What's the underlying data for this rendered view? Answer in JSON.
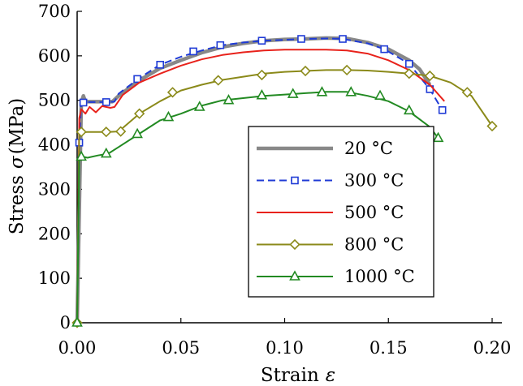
{
  "chart_data": {
    "type": "line",
    "xlabel": "Strain",
    "xlabel_symbol": "ε",
    "ylabel": "Stress",
    "ylabel_symbol": "σ",
    "ylabel_unit": "(MPa)",
    "xlim": [
      0,
      0.2
    ],
    "ylim": [
      0,
      700
    ],
    "x_ticks": [
      "0.00",
      "0.05",
      "0.10",
      "0.15",
      "0.20"
    ],
    "y_ticks": [
      "0",
      "100",
      "200",
      "300",
      "400",
      "500",
      "600",
      "700"
    ],
    "grid": false,
    "legend_position": "lower-middle",
    "series": [
      {
        "name": "20 °C",
        "color": "#888888",
        "line": "solid",
        "marker": "none",
        "points": [
          [
            0,
            0
          ],
          [
            0.002,
            495
          ],
          [
            0.003,
            510
          ],
          [
            0.004,
            497
          ],
          [
            0.017,
            497
          ],
          [
            0.02,
            510
          ],
          [
            0.03,
            545
          ],
          [
            0.04,
            572
          ],
          [
            0.05,
            590
          ],
          [
            0.06,
            607
          ],
          [
            0.07,
            620
          ],
          [
            0.08,
            628
          ],
          [
            0.09,
            634
          ],
          [
            0.1,
            637
          ],
          [
            0.11,
            638
          ],
          [
            0.12,
            640
          ],
          [
            0.13,
            639
          ],
          [
            0.14,
            630
          ],
          [
            0.15,
            615
          ],
          [
            0.16,
            590
          ],
          [
            0.165,
            570
          ],
          [
            0.17,
            535
          ]
        ],
        "markers": []
      },
      {
        "name": "300 °C",
        "color": "#1f3bd6",
        "line": "dashed",
        "marker": "square",
        "points": [
          [
            0,
            0
          ],
          [
            0.001,
            405
          ],
          [
            0.002,
            495
          ],
          [
            0.005,
            496
          ],
          [
            0.014,
            496
          ],
          [
            0.018,
            497
          ],
          [
            0.02,
            515
          ],
          [
            0.03,
            550
          ],
          [
            0.04,
            580
          ],
          [
            0.05,
            598
          ],
          [
            0.06,
            612
          ],
          [
            0.07,
            624
          ],
          [
            0.08,
            630
          ],
          [
            0.09,
            634
          ],
          [
            0.1,
            636
          ],
          [
            0.11,
            638
          ],
          [
            0.12,
            639
          ],
          [
            0.128,
            638
          ],
          [
            0.14,
            628
          ],
          [
            0.148,
            615
          ],
          [
            0.16,
            582
          ],
          [
            0.17,
            525
          ],
          [
            0.176,
            478
          ]
        ],
        "markers": [
          [
            0.001,
            405
          ],
          [
            0.003,
            495
          ],
          [
            0.014,
            496
          ],
          [
            0.029,
            548
          ],
          [
            0.04,
            580
          ],
          [
            0.056,
            610
          ],
          [
            0.069,
            624
          ],
          [
            0.089,
            634
          ],
          [
            0.108,
            638
          ],
          [
            0.128,
            638
          ],
          [
            0.148,
            615
          ],
          [
            0.16,
            582
          ],
          [
            0.17,
            525
          ],
          [
            0.176,
            478
          ]
        ]
      },
      {
        "name": "500 °C",
        "color": "#e8221b",
        "line": "solid",
        "marker": "none",
        "points": [
          [
            0,
            0
          ],
          [
            0.001,
            460
          ],
          [
            0.002,
            480
          ],
          [
            0.004,
            470
          ],
          [
            0.006,
            485
          ],
          [
            0.009,
            473
          ],
          [
            0.012,
            487
          ],
          [
            0.016,
            483
          ],
          [
            0.018,
            485
          ],
          [
            0.022,
            512
          ],
          [
            0.03,
            540
          ],
          [
            0.04,
            560
          ],
          [
            0.05,
            578
          ],
          [
            0.06,
            592
          ],
          [
            0.07,
            602
          ],
          [
            0.08,
            608
          ],
          [
            0.09,
            612
          ],
          [
            0.1,
            614
          ],
          [
            0.11,
            614
          ],
          [
            0.12,
            614
          ],
          [
            0.13,
            612
          ],
          [
            0.14,
            605
          ],
          [
            0.15,
            590
          ],
          [
            0.16,
            568
          ],
          [
            0.17,
            535
          ],
          [
            0.177,
            498
          ]
        ],
        "markers": []
      },
      {
        "name": "800 °C",
        "color": "#8b8a1a",
        "line": "solid",
        "marker": "diamond",
        "points": [
          [
            0,
            0
          ],
          [
            0.001,
            428
          ],
          [
            0.005,
            429
          ],
          [
            0.015,
            429
          ],
          [
            0.02,
            430
          ],
          [
            0.03,
            470
          ],
          [
            0.04,
            498
          ],
          [
            0.05,
            522
          ],
          [
            0.06,
            535
          ],
          [
            0.07,
            546
          ],
          [
            0.08,
            553
          ],
          [
            0.09,
            560
          ],
          [
            0.1,
            564
          ],
          [
            0.11,
            566
          ],
          [
            0.12,
            568
          ],
          [
            0.13,
            568
          ],
          [
            0.14,
            567
          ],
          [
            0.15,
            564
          ],
          [
            0.16,
            560
          ],
          [
            0.17,
            555
          ],
          [
            0.18,
            540
          ],
          [
            0.19,
            510
          ],
          [
            0.2,
            442
          ]
        ],
        "markers": [
          [
            0,
            0
          ],
          [
            0.002,
            429
          ],
          [
            0.014,
            429
          ],
          [
            0.021,
            430
          ],
          [
            0.03,
            470
          ],
          [
            0.046,
            518
          ],
          [
            0.068,
            545
          ],
          [
            0.089,
            557
          ],
          [
            0.11,
            566
          ],
          [
            0.13,
            568
          ],
          [
            0.16,
            560
          ],
          [
            0.17,
            555
          ],
          [
            0.188,
            518
          ],
          [
            0.2,
            442
          ]
        ]
      },
      {
        "name": "1000 °C",
        "color": "#228a22",
        "line": "solid",
        "marker": "triangle",
        "points": [
          [
            0,
            0
          ],
          [
            0.001,
            375
          ],
          [
            0.005,
            371
          ],
          [
            0.01,
            376
          ],
          [
            0.015,
            380
          ],
          [
            0.02,
            395
          ],
          [
            0.03,
            425
          ],
          [
            0.04,
            455
          ],
          [
            0.05,
            470
          ],
          [
            0.06,
            488
          ],
          [
            0.07,
            500
          ],
          [
            0.08,
            505
          ],
          [
            0.09,
            510
          ],
          [
            0.1,
            513
          ],
          [
            0.11,
            516
          ],
          [
            0.12,
            519
          ],
          [
            0.13,
            519
          ],
          [
            0.14,
            510
          ],
          [
            0.15,
            498
          ],
          [
            0.16,
            475
          ],
          [
            0.17,
            440
          ],
          [
            0.174,
            415
          ]
        ],
        "markers": [
          [
            0,
            0
          ],
          [
            0.002,
            373
          ],
          [
            0.014,
            380
          ],
          [
            0.029,
            424
          ],
          [
            0.044,
            462
          ],
          [
            0.059,
            485
          ],
          [
            0.073,
            500
          ],
          [
            0.089,
            511
          ],
          [
            0.104,
            514
          ],
          [
            0.118,
            518
          ],
          [
            0.132,
            518
          ],
          [
            0.146,
            510
          ],
          [
            0.16,
            477
          ],
          [
            0.174,
            415
          ]
        ]
      }
    ]
  }
}
